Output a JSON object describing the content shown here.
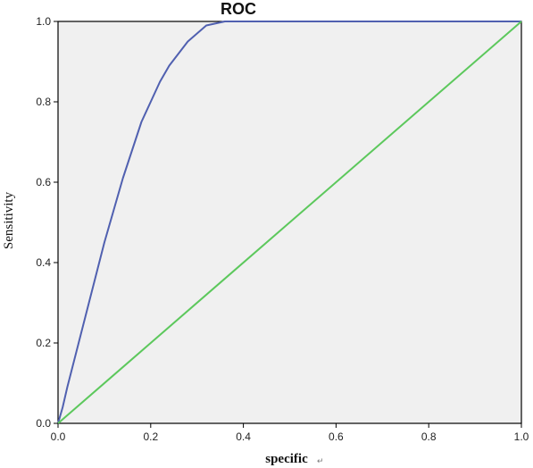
{
  "chart_data": {
    "type": "line",
    "title": "ROC",
    "xlabel": "specific",
    "xlabel_mark": "↵",
    "ylabel": "Sensitivity",
    "xlim": [
      0,
      1
    ],
    "ylim": [
      0,
      1
    ],
    "xticks": [
      "0.0",
      "0.2",
      "0.4",
      "0.6",
      "0.8",
      "1.0"
    ],
    "yticks": [
      "0.0",
      "0.2",
      "0.4",
      "0.6",
      "0.8",
      "1.0"
    ],
    "grid": false,
    "legend": "none",
    "background_color": "#f0f0f0",
    "series": [
      {
        "color": "#5060b0",
        "x": [
          0,
          0.01,
          0.02,
          0.04,
          0.06,
          0.08,
          0.1,
          0.12,
          0.14,
          0.16,
          0.18,
          0.2,
          0.22,
          0.24,
          0.26,
          0.28,
          0.3,
          0.32,
          0.34,
          0.36,
          0.38,
          0.4,
          0.5,
          0.6,
          0.7,
          0.8,
          0.9,
          1.0
        ],
        "y": [
          0,
          0.04,
          0.09,
          0.18,
          0.27,
          0.36,
          0.45,
          0.53,
          0.61,
          0.68,
          0.75,
          0.8,
          0.85,
          0.89,
          0.92,
          0.95,
          0.97,
          0.99,
          0.995,
          1.0,
          1.0,
          1.0,
          1.0,
          1.0,
          1.0,
          1.0,
          1.0,
          1.0
        ]
      },
      {
        "color": "#5cc85c",
        "x": [
          0,
          1
        ],
        "y": [
          0,
          1
        ]
      }
    ]
  }
}
